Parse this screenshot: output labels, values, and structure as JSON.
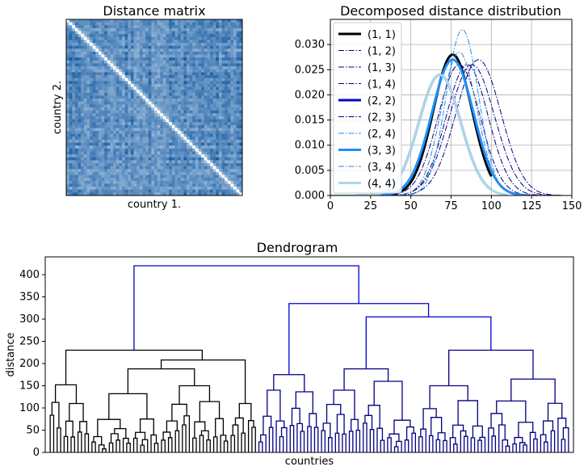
{
  "chart_data": [
    {
      "type": "heatmap",
      "title": "Distance matrix",
      "xlabel": "country 1.",
      "ylabel": "country 2.",
      "colormap": "Blues",
      "diagonal_color": "#ffffff"
    },
    {
      "type": "line",
      "title": "Decomposed distance distribution",
      "xlim": [
        0,
        150
      ],
      "ylim": [
        0,
        0.035
      ],
      "xticks": [
        "0",
        "25",
        "50",
        "75",
        "100",
        "125",
        "150"
      ],
      "yticks": [
        "0.000",
        "0.005",
        "0.010",
        "0.015",
        "0.020",
        "0.025",
        "0.030"
      ],
      "grid": true,
      "legend_position": "top-left",
      "series": [
        {
          "name": "(1, 1)",
          "color": "#000000",
          "style": "solid-thick",
          "peak_x": 76,
          "peak_y": 0.028,
          "sd": 12,
          "range": [
            0,
            100
          ]
        },
        {
          "name": "(1, 2)",
          "color": "#00008b",
          "style": "dashdot",
          "peak_x": 88,
          "peak_y": 0.026,
          "sd": 14,
          "range": [
            20,
            140
          ]
        },
        {
          "name": "(1, 3)",
          "color": "#000080",
          "style": "dashdot",
          "peak_x": 85,
          "peak_y": 0.026,
          "sd": 13,
          "range": [
            20,
            135
          ]
        },
        {
          "name": "(1, 4)",
          "color": "#00008b",
          "style": "dashdot",
          "peak_x": 92,
          "peak_y": 0.027,
          "sd": 14,
          "range": [
            25,
            145
          ]
        },
        {
          "name": "(2, 2)",
          "color": "#0000cd",
          "style": "solid-thick",
          "peak_x": 68,
          "peak_y": 0.024,
          "sd": 13,
          "range": [
            0,
            100
          ]
        },
        {
          "name": "(2, 3)",
          "color": "#00008b",
          "style": "dashdot",
          "peak_x": 80,
          "peak_y": 0.026,
          "sd": 13,
          "range": [
            15,
            130
          ]
        },
        {
          "name": "(2, 4)",
          "color": "#1e90ff",
          "style": "dashdot",
          "peak_x": 82,
          "peak_y": 0.033,
          "sd": 10,
          "range": [
            30,
            130
          ]
        },
        {
          "name": "(3, 3)",
          "color": "#1e90ff",
          "style": "solid-thick",
          "peak_x": 76,
          "peak_y": 0.027,
          "sd": 13,
          "range": [
            0,
            123
          ]
        },
        {
          "name": "(3, 4)",
          "color": "#4682b4",
          "style": "dashdot",
          "peak_x": 80,
          "peak_y": 0.0285,
          "sd": 11,
          "range": [
            20,
            125
          ]
        },
        {
          "name": "(4, 4)",
          "color": "#add8e6",
          "style": "solid-thick",
          "peak_x": 68,
          "peak_y": 0.024,
          "sd": 13,
          "range": [
            0,
            110
          ]
        }
      ]
    },
    {
      "type": "dendrogram",
      "title": "Dendrogram",
      "xlabel": "countries",
      "ylabel": "distance",
      "ylim": [
        0,
        440
      ],
      "yticks": [
        0,
        50,
        100,
        150,
        200,
        250,
        300,
        350,
        400
      ],
      "link_colors": {
        "root": "#0000cd",
        "left_cluster": "#000000",
        "right_cluster": "#000080"
      },
      "top_merges": [
        {
          "height": 420,
          "color": "#0000cd"
        },
        {
          "height": 335,
          "color": "#0000cd"
        },
        {
          "height": 305,
          "color": "#0000cd"
        },
        {
          "height": 230,
          "color": "#000000"
        },
        {
          "height": 230,
          "color": "#000080"
        },
        {
          "height": 208,
          "color": "#000000"
        },
        {
          "height": 188,
          "color": "#000080"
        },
        {
          "height": 175,
          "color": "#000080"
        },
        {
          "height": 165,
          "color": "#000080"
        },
        {
          "height": 152,
          "color": "#000000"
        },
        {
          "height": 132,
          "color": "#000000"
        }
      ]
    }
  ]
}
